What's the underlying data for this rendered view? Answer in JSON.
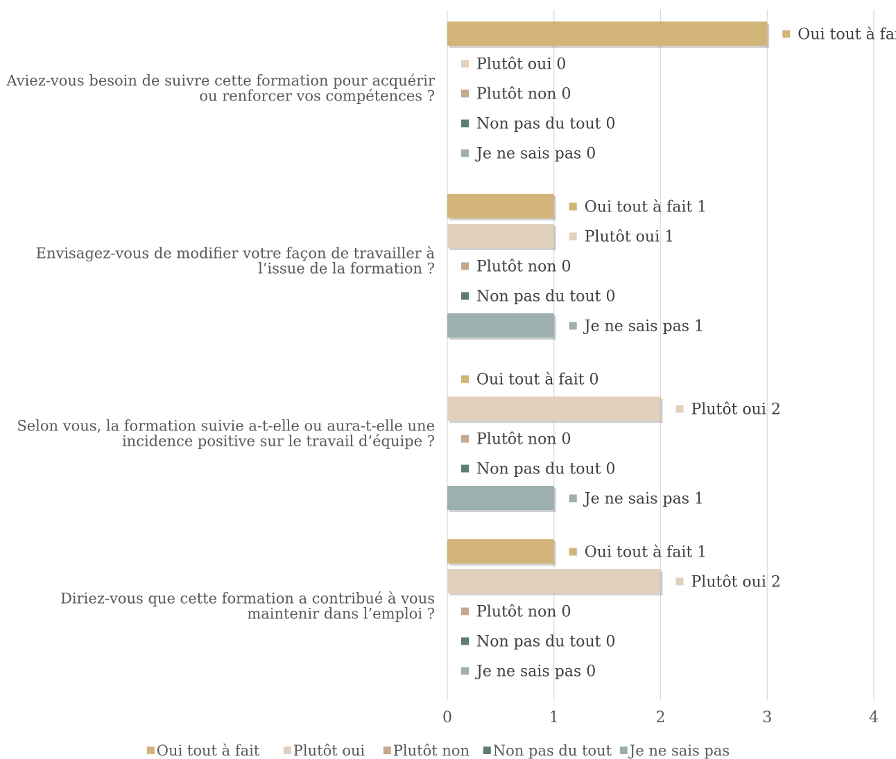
{
  "chart_data": {
    "type": "bar",
    "orientation": "horizontal",
    "xlim": [
      0,
      4
    ],
    "xticks": [
      "0",
      "1",
      "2",
      "3",
      "4"
    ],
    "grid": true,
    "legend_position": "bottom",
    "categories": [
      "Aviez-vous besoin de suivre cette formation pour acquérir ou renforcer vos compétences ?",
      "Envisagez-vous de modifier votre façon de travailler à l’issue de la formation ?",
      "Selon vous, la formation suivie a-t-elle ou aura-t-elle une incidence positive sur le travail d’équipe ?",
      "Diriez-vous que cette formation a contribué à vous maintenir dans l’emploi ?"
    ],
    "category_lines": [
      [
        "Aviez-vous besoin de suivre cette formation pour acquérir",
        "ou renforcer vos compétences ?"
      ],
      [
        "Envisagez-vous de modifier votre façon de travailler à",
        "l’issue de la formation ?"
      ],
      [
        "Selon vous, la formation suivie a-t-elle ou aura-t-elle une",
        "incidence positive sur le travail d’équipe ?"
      ],
      [
        "Diriez-vous que cette formation a contribué à vous",
        "maintenir dans l’emploi ?"
      ]
    ],
    "series": [
      {
        "name": "Oui tout à fait",
        "color": "#D2B478",
        "values": [
          3,
          1,
          0,
          1
        ]
      },
      {
        "name": "Plutôt oui",
        "color": "#E2D0BE",
        "values": [
          0,
          1,
          2,
          2
        ]
      },
      {
        "name": "Plutôt non",
        "color": "#C4A890",
        "values": [
          0,
          0,
          0,
          0
        ]
      },
      {
        "name": "Non pas du tout",
        "color": "#5E7B78",
        "values": [
          0,
          0,
          0,
          0
        ]
      },
      {
        "name": "Je ne sais pas",
        "color": "#9CB0B0",
        "values": [
          0,
          1,
          1,
          0
        ]
      }
    ]
  }
}
